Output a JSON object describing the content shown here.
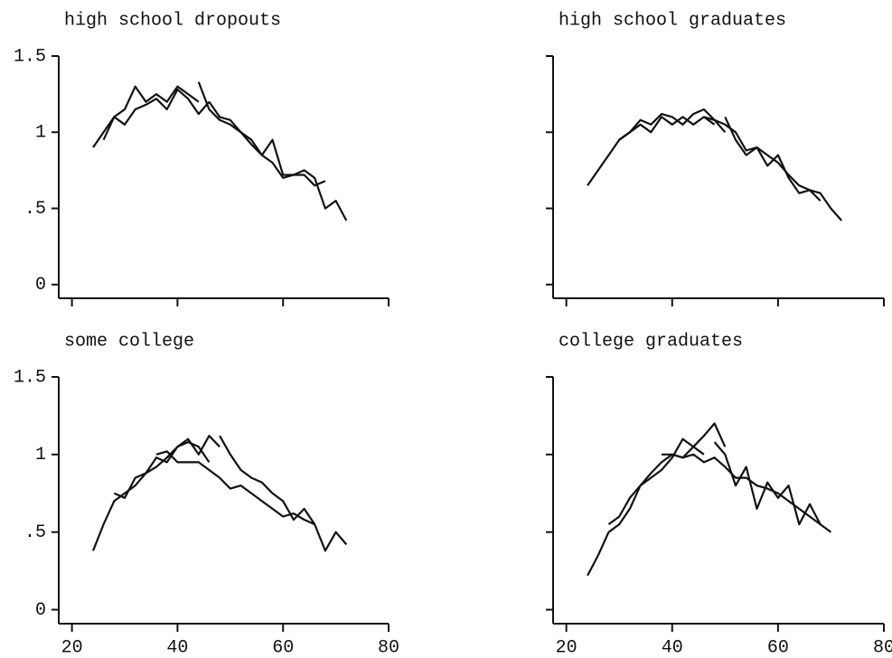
{
  "chart_data": [
    {
      "type": "line",
      "title": "high school dropouts",
      "xlim": [
        17.5,
        80
      ],
      "ylim": [
        -0.09,
        1.5
      ],
      "xticks": [
        20,
        40,
        60,
        80
      ],
      "yticks": [
        0,
        {
          "value": 0.5,
          "label": ".5"
        },
        1,
        1.5
      ],
      "xtick_labels": false,
      "ytick_labels": true,
      "series": [
        {
          "color": "#111111",
          "x": [
            24,
            26,
            28,
            30,
            32,
            34,
            36,
            38,
            40,
            42,
            44
          ],
          "values": [
            0.9,
            1.0,
            1.1,
            1.15,
            1.3,
            1.2,
            1.25,
            1.2,
            1.3,
            1.25,
            1.2
          ]
        },
        {
          "color": "#111111",
          "x": [
            26,
            28,
            30,
            32,
            34,
            36,
            38,
            40,
            42,
            44,
            46
          ],
          "values": [
            0.95,
            1.1,
            1.05,
            1.15,
            1.18,
            1.22,
            1.15,
            1.28,
            1.22,
            1.12,
            1.2
          ]
        },
        {
          "color": "#111111",
          "x": [
            44,
            46,
            48,
            50,
            52,
            54,
            56,
            58,
            60,
            62,
            64,
            66,
            68
          ],
          "values": [
            1.33,
            1.15,
            1.08,
            1.05,
            1.0,
            0.92,
            0.85,
            0.95,
            0.72,
            0.72,
            0.72,
            0.65,
            0.68
          ]
        },
        {
          "color": "#111111",
          "x": [
            46,
            48,
            50,
            52,
            54,
            56,
            58,
            60,
            62,
            64,
            66,
            68,
            70,
            72
          ],
          "values": [
            1.2,
            1.1,
            1.08,
            1.0,
            0.95,
            0.85,
            0.8,
            0.7,
            0.72,
            0.75,
            0.7,
            0.5,
            0.55,
            0.42
          ]
        }
      ]
    },
    {
      "type": "line",
      "title": "high school graduates",
      "xlim": [
        17.5,
        80
      ],
      "ylim": [
        -0.09,
        1.5
      ],
      "xticks": [
        20,
        40,
        60,
        80
      ],
      "yticks": [
        0,
        {
          "value": 0.5,
          "label": ".5"
        },
        1,
        1.5
      ],
      "xtick_labels": false,
      "ytick_labels": false,
      "series": [
        {
          "color": "#111111",
          "x": [
            24,
            26,
            28,
            30,
            32,
            34,
            36,
            38,
            40,
            42,
            44,
            46,
            48
          ],
          "values": [
            0.65,
            0.75,
            0.85,
            0.95,
            1.0,
            1.05,
            1.0,
            1.1,
            1.05,
            1.1,
            1.05,
            1.1,
            1.05
          ]
        },
        {
          "color": "#111111",
          "x": [
            30,
            32,
            34,
            36,
            38,
            40,
            42,
            44,
            46,
            48,
            50
          ],
          "values": [
            0.95,
            1.0,
            1.08,
            1.05,
            1.12,
            1.1,
            1.05,
            1.12,
            1.15,
            1.08,
            1.0
          ]
        },
        {
          "color": "#111111",
          "x": [
            46,
            48,
            50,
            52,
            54,
            56,
            58,
            60,
            62,
            64,
            66,
            68,
            70,
            72
          ],
          "values": [
            1.1,
            1.08,
            1.05,
            1.0,
            0.88,
            0.9,
            0.85,
            0.8,
            0.72,
            0.65,
            0.62,
            0.6,
            0.5,
            0.42
          ]
        },
        {
          "color": "#111111",
          "x": [
            50,
            52,
            54,
            56,
            58,
            60,
            62,
            64,
            66,
            68
          ],
          "values": [
            1.1,
            0.95,
            0.85,
            0.9,
            0.78,
            0.85,
            0.7,
            0.6,
            0.62,
            0.55
          ]
        }
      ]
    },
    {
      "type": "line",
      "title": "some college",
      "xlim": [
        17.5,
        80
      ],
      "ylim": [
        -0.09,
        1.5
      ],
      "xticks": [
        20,
        40,
        60,
        80
      ],
      "yticks": [
        0,
        {
          "value": 0.5,
          "label": ".5"
        },
        1,
        1.5
      ],
      "xtick_labels": true,
      "ytick_labels": true,
      "series": [
        {
          "color": "#111111",
          "x": [
            24,
            26,
            28,
            30,
            32,
            34,
            36,
            38,
            40,
            42,
            44,
            46
          ],
          "values": [
            0.38,
            0.55,
            0.7,
            0.75,
            0.8,
            0.88,
            0.92,
            0.98,
            1.05,
            1.08,
            1.05,
            0.95
          ]
        },
        {
          "color": "#111111",
          "x": [
            28,
            30,
            32,
            34,
            36,
            38,
            40,
            42,
            44,
            46,
            48
          ],
          "values": [
            0.75,
            0.72,
            0.85,
            0.88,
            0.98,
            0.95,
            1.05,
            1.1,
            1.0,
            1.12,
            1.05
          ]
        },
        {
          "color": "#111111",
          "x": [
            36,
            38,
            40,
            42,
            44,
            46,
            48,
            50,
            52,
            54,
            56,
            58,
            60,
            62,
            64,
            66
          ],
          "values": [
            1.0,
            1.02,
            0.95,
            0.95,
            0.95,
            0.9,
            0.85,
            0.78,
            0.8,
            0.75,
            0.7,
            0.65,
            0.6,
            0.62,
            0.58,
            0.55
          ]
        },
        {
          "color": "#111111",
          "x": [
            48,
            50,
            52,
            54,
            56,
            58,
            60,
            62,
            64,
            66,
            68,
            70,
            72
          ],
          "values": [
            1.12,
            1.0,
            0.9,
            0.85,
            0.82,
            0.75,
            0.7,
            0.58,
            0.65,
            0.55,
            0.38,
            0.5,
            0.42
          ]
        }
      ]
    },
    {
      "type": "line",
      "title": "college graduates",
      "xlim": [
        17.5,
        80
      ],
      "ylim": [
        -0.09,
        1.5
      ],
      "xticks": [
        20,
        40,
        60,
        80
      ],
      "yticks": [
        0,
        {
          "value": 0.5,
          "label": ".5"
        },
        1,
        1.5
      ],
      "xtick_labels": true,
      "ytick_labels": false,
      "series": [
        {
          "color": "#111111",
          "x": [
            24,
            26,
            28,
            30,
            32,
            34,
            36,
            38,
            40,
            42,
            44,
            46
          ],
          "values": [
            0.22,
            0.35,
            0.5,
            0.55,
            0.65,
            0.8,
            0.85,
            0.9,
            0.98,
            1.1,
            1.05,
            1.0
          ]
        },
        {
          "color": "#111111",
          "x": [
            28,
            30,
            32,
            34,
            36,
            38,
            40,
            42,
            44,
            46,
            48,
            50
          ],
          "values": [
            0.55,
            0.6,
            0.72,
            0.8,
            0.88,
            0.95,
            1.0,
            0.98,
            1.05,
            1.12,
            1.2,
            1.05
          ]
        },
        {
          "color": "#111111",
          "x": [
            38,
            40,
            42,
            44,
            46,
            48,
            50,
            52,
            54,
            56,
            58,
            60,
            62,
            64,
            66,
            68,
            70
          ],
          "values": [
            1.0,
            1.0,
            0.98,
            1.0,
            0.95,
            0.98,
            0.92,
            0.85,
            0.85,
            0.8,
            0.78,
            0.75,
            0.7,
            0.65,
            0.6,
            0.55,
            0.5
          ]
        },
        {
          "color": "#111111",
          "x": [
            48,
            50,
            52,
            54,
            56,
            58,
            60,
            62,
            64,
            66,
            68
          ],
          "values": [
            1.08,
            1.0,
            0.8,
            0.92,
            0.65,
            0.82,
            0.72,
            0.8,
            0.55,
            0.68,
            0.55
          ]
        }
      ]
    }
  ]
}
